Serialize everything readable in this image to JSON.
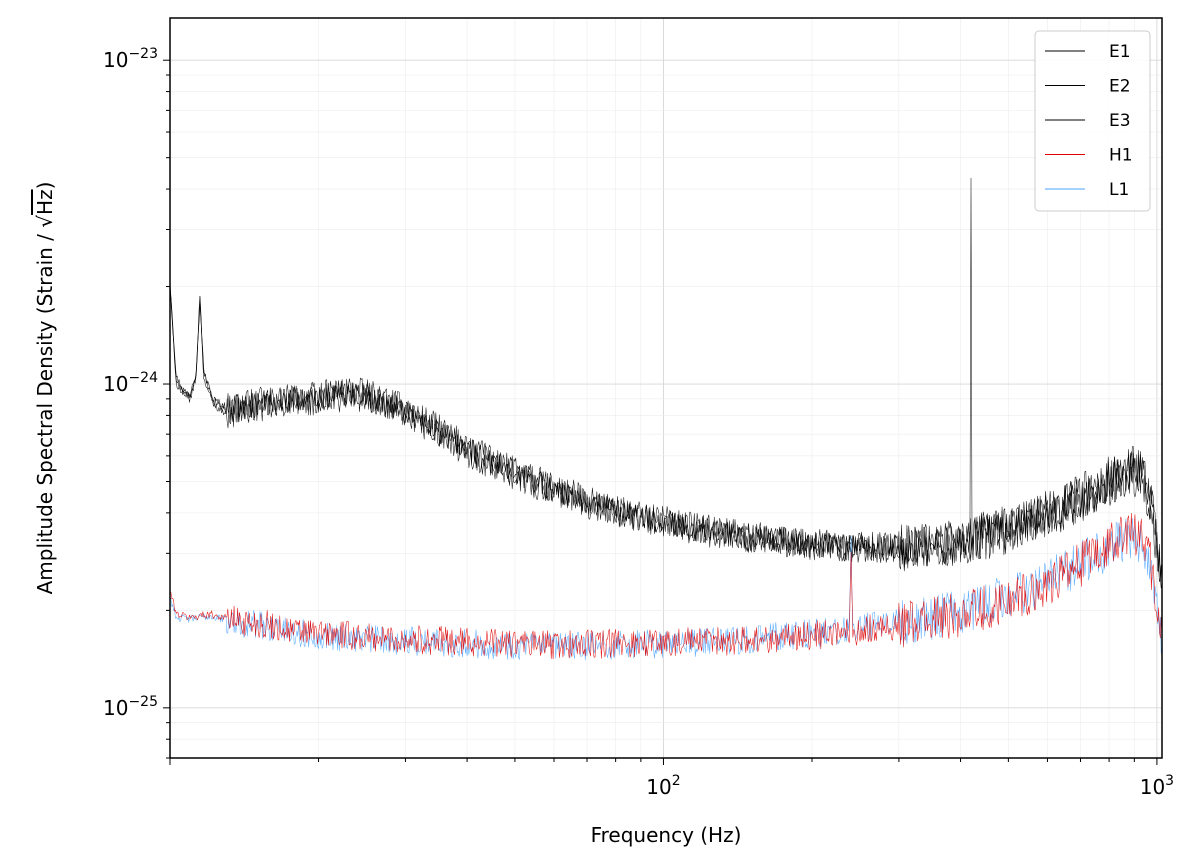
{
  "chart_data": {
    "type": "line",
    "xlabel": "Frequency (Hz)",
    "ylabel": "Amplitude Spectral Density (Strain / √Hz)",
    "ylabel_main": "Amplitude Spectral Density (Strain / ",
    "ylabel_sqrt": "√",
    "ylabel_unit": "Hz",
    "ylabel_close": ")",
    "xscale": "log",
    "yscale": "log",
    "xlim": [
      10,
      1024
    ],
    "ylim": [
      7e-26,
      1.35e-23
    ],
    "grid": true,
    "legend_position": "top-right",
    "x_major_ticks": [
      {
        "value": 100,
        "base": "10",
        "exp": "2"
      },
      {
        "value": 1000,
        "base": "10",
        "exp": "3"
      }
    ],
    "y_major_ticks": [
      {
        "value": 1e-25,
        "base": "10",
        "exp": "−25"
      },
      {
        "value": 1e-24,
        "base": "10",
        "exp": "−24"
      },
      {
        "value": 1e-23,
        "base": "10",
        "exp": "−23"
      }
    ],
    "series": [
      {
        "name": "E1",
        "color": "#000000",
        "points": [
          [
            10,
            2.1e-24
          ],
          [
            10.3,
            1.05e-24
          ],
          [
            10.7,
            9.5e-25
          ],
          [
            11,
            9.3e-25
          ],
          [
            11.3,
            1.1e-24
          ],
          [
            11.5,
            1.9e-24
          ],
          [
            11.7,
            1.1e-24
          ],
          [
            12.2,
            9e-25
          ],
          [
            13,
            8.5e-25
          ],
          [
            15,
            8.8e-25
          ],
          [
            17,
            9e-25
          ],
          [
            20,
            9.2e-25
          ],
          [
            23,
            9.6e-25
          ],
          [
            26,
            9.2e-25
          ],
          [
            30,
            8.4e-25
          ],
          [
            35,
            7.3e-25
          ],
          [
            40,
            6.4e-25
          ],
          [
            50,
            5.4e-25
          ],
          [
            60,
            4.8e-25
          ],
          [
            70,
            4.4e-25
          ],
          [
            80,
            4.1e-25
          ],
          [
            100,
            3.8e-25
          ],
          [
            120,
            3.6e-25
          ],
          [
            150,
            3.4e-25
          ],
          [
            180,
            3.3e-25
          ],
          [
            210,
            3.2e-25
          ],
          [
            250,
            3.15e-25
          ],
          [
            300,
            3.15e-25
          ],
          [
            350,
            3.2e-25
          ],
          [
            410,
            3.25e-25
          ],
          [
            418,
            3.3e-25
          ],
          [
            420,
            4.7e-24
          ],
          [
            422,
            3.3e-25
          ],
          [
            430,
            3.4e-25
          ],
          [
            500,
            3.6e-25
          ],
          [
            600,
            4e-25
          ],
          [
            700,
            4.5e-25
          ],
          [
            800,
            5.1e-25
          ],
          [
            880,
            5.5e-25
          ],
          [
            930,
            5.4e-25
          ],
          [
            970,
            4.5e-25
          ],
          [
            1000,
            3.2e-25
          ],
          [
            1024,
            2.5e-25
          ]
        ]
      },
      {
        "name": "E2",
        "color": "#000000",
        "points": [
          [
            10,
            2e-24
          ],
          [
            10.3,
            1.02e-24
          ],
          [
            10.7,
            9.3e-25
          ],
          [
            11,
            9.2e-25
          ],
          [
            11.3,
            1.08e-24
          ],
          [
            11.5,
            1.85e-24
          ],
          [
            11.7,
            1.08e-24
          ],
          [
            12.2,
            8.9e-25
          ],
          [
            13,
            8.3e-25
          ],
          [
            15,
            8.6e-25
          ],
          [
            17,
            8.9e-25
          ],
          [
            20,
            9e-25
          ],
          [
            23,
            9.4e-25
          ],
          [
            26,
            9e-25
          ],
          [
            30,
            8.2e-25
          ],
          [
            35,
            7.1e-25
          ],
          [
            40,
            6.2e-25
          ],
          [
            50,
            5.3e-25
          ],
          [
            60,
            4.7e-25
          ],
          [
            70,
            4.3e-25
          ],
          [
            80,
            4.05e-25
          ],
          [
            100,
            3.75e-25
          ],
          [
            120,
            3.55e-25
          ],
          [
            150,
            3.35e-25
          ],
          [
            180,
            3.25e-25
          ],
          [
            210,
            3.18e-25
          ],
          [
            250,
            3.12e-25
          ],
          [
            300,
            3.12e-25
          ],
          [
            350,
            3.18e-25
          ],
          [
            410,
            3.22e-25
          ],
          [
            430,
            3.35e-25
          ],
          [
            500,
            3.55e-25
          ],
          [
            600,
            3.95e-25
          ],
          [
            700,
            4.45e-25
          ],
          [
            800,
            5e-25
          ],
          [
            880,
            5.4e-25
          ],
          [
            930,
            5.3e-25
          ],
          [
            970,
            4.4e-25
          ],
          [
            1000,
            3.1e-25
          ],
          [
            1024,
            2.45e-25
          ]
        ]
      },
      {
        "name": "E3",
        "color": "#000000",
        "points": [
          [
            10,
            1.95e-24
          ],
          [
            10.3,
            1e-24
          ],
          [
            10.7,
            9.1e-25
          ],
          [
            11,
            9e-25
          ],
          [
            11.3,
            1.05e-24
          ],
          [
            11.5,
            1.8e-24
          ],
          [
            11.7,
            1.05e-24
          ],
          [
            12.2,
            8.7e-25
          ],
          [
            13,
            8.1e-25
          ],
          [
            15,
            8.4e-25
          ],
          [
            17,
            8.7e-25
          ],
          [
            20,
            8.8e-25
          ],
          [
            23,
            9.2e-25
          ],
          [
            26,
            8.8e-25
          ],
          [
            30,
            8e-25
          ],
          [
            35,
            7e-25
          ],
          [
            40,
            6.1e-25
          ],
          [
            50,
            5.2e-25
          ],
          [
            60,
            4.65e-25
          ],
          [
            70,
            4.25e-25
          ],
          [
            80,
            4e-25
          ],
          [
            100,
            3.7e-25
          ],
          [
            120,
            3.5e-25
          ],
          [
            150,
            3.3e-25
          ],
          [
            180,
            3.2e-25
          ],
          [
            210,
            3.15e-25
          ],
          [
            250,
            3.1e-25
          ],
          [
            300,
            3.1e-25
          ],
          [
            350,
            3.15e-25
          ],
          [
            410,
            3.2e-25
          ],
          [
            430,
            3.3e-25
          ],
          [
            500,
            3.5e-25
          ],
          [
            600,
            3.9e-25
          ],
          [
            700,
            4.4e-25
          ],
          [
            800,
            4.9e-25
          ],
          [
            880,
            5.3e-25
          ],
          [
            930,
            5.2e-25
          ],
          [
            970,
            4.3e-25
          ],
          [
            1000,
            3e-25
          ],
          [
            1024,
            2.4e-25
          ]
        ]
      },
      {
        "name": "H1",
        "color": "#e00000",
        "points": [
          [
            10,
            2.3e-25
          ],
          [
            10.3,
            1.95e-25
          ],
          [
            11,
            1.9e-25
          ],
          [
            12,
            1.95e-25
          ],
          [
            14,
            1.85e-25
          ],
          [
            16,
            1.8e-25
          ],
          [
            18,
            1.72e-25
          ],
          [
            20,
            1.7e-25
          ],
          [
            25,
            1.65e-25
          ],
          [
            30,
            1.63e-25
          ],
          [
            40,
            1.6e-25
          ],
          [
            50,
            1.58e-25
          ],
          [
            60,
            1.56e-25
          ],
          [
            80,
            1.58e-25
          ],
          [
            100,
            1.6e-25
          ],
          [
            120,
            1.6e-25
          ],
          [
            150,
            1.62e-25
          ],
          [
            180,
            1.65e-25
          ],
          [
            220,
            1.7e-25
          ],
          [
            238,
            1.72e-25
          ],
          [
            240,
            3e-25
          ],
          [
            242,
            1.72e-25
          ],
          [
            260,
            1.75e-25
          ],
          [
            300,
            1.8e-25
          ],
          [
            350,
            1.87e-25
          ],
          [
            400,
            1.95e-25
          ],
          [
            500,
            2.15e-25
          ],
          [
            600,
            2.4e-25
          ],
          [
            700,
            2.75e-25
          ],
          [
            800,
            3.15e-25
          ],
          [
            880,
            3.45e-25
          ],
          [
            930,
            3.4e-25
          ],
          [
            970,
            2.8e-25
          ],
          [
            1000,
            2e-25
          ],
          [
            1024,
            1.6e-25
          ]
        ]
      },
      {
        "name": "L1",
        "color": "#4da6ff",
        "points": [
          [
            10,
            2.2e-25
          ],
          [
            10.3,
            1.9e-25
          ],
          [
            11,
            1.88e-25
          ],
          [
            12,
            1.92e-25
          ],
          [
            14,
            1.83e-25
          ],
          [
            16,
            1.78e-25
          ],
          [
            18,
            1.7e-25
          ],
          [
            20,
            1.68e-25
          ],
          [
            25,
            1.63e-25
          ],
          [
            30,
            1.61e-25
          ],
          [
            40,
            1.58e-25
          ],
          [
            50,
            1.56e-25
          ],
          [
            60,
            1.54e-25
          ],
          [
            80,
            1.56e-25
          ],
          [
            100,
            1.58e-25
          ],
          [
            120,
            1.6e-25
          ],
          [
            150,
            1.63e-25
          ],
          [
            180,
            1.67e-25
          ],
          [
            220,
            1.72e-25
          ],
          [
            238,
            1.74e-25
          ],
          [
            240,
            3.2e-25
          ],
          [
            242,
            1.74e-25
          ],
          [
            260,
            1.78e-25
          ],
          [
            300,
            1.83e-25
          ],
          [
            350,
            1.9e-25
          ],
          [
            400,
            1.98e-25
          ],
          [
            500,
            2.2e-25
          ],
          [
            600,
            2.45e-25
          ],
          [
            700,
            2.8e-25
          ],
          [
            800,
            3.1e-25
          ],
          [
            880,
            3.35e-25
          ],
          [
            930,
            3.3e-25
          ],
          [
            970,
            2.75e-25
          ],
          [
            1000,
            1.95e-25
          ],
          [
            1024,
            1.55e-25
          ]
        ]
      }
    ]
  }
}
